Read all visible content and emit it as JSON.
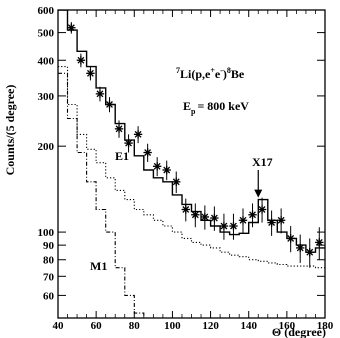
{
  "chart_data": {
    "type": "line",
    "ylabel": "Counts/(5 degree)",
    "xlabel": "Θ (degree)",
    "xlim": [
      40,
      180
    ],
    "ylim": [
      50,
      600
    ],
    "y_scale": "log",
    "x_ticks": [
      40,
      60,
      80,
      100,
      120,
      140,
      160,
      180
    ],
    "y_ticks": [
      60,
      70,
      80,
      90,
      100,
      200,
      300,
      400,
      500,
      600
    ],
    "annotations": {
      "reaction_parts": {
        "sup_mass_a": "7",
        "element_a": "Li(p,e",
        "sup_plus": "+",
        "element_e": "e",
        "sup_minus": "-",
        "close": ")",
        "sup_mass_b": "8",
        "element_b": "Be"
      },
      "energy": "E",
      "energy_sub": "p",
      "energy_value": "= 800 keV",
      "e1_label": "E1",
      "m1_label": "M1",
      "x17_label": "X17",
      "x17_arrow_x": 145,
      "x17_arrow_y": 130
    },
    "series": [
      {
        "style": "points",
        "x": [
          47,
          52,
          57,
          62,
          67,
          72,
          77,
          82,
          87,
          92,
          97,
          102,
          107,
          112,
          117,
          122,
          127,
          132,
          137,
          142,
          147,
          152,
          157,
          162,
          167,
          172,
          177
        ],
        "values": [
          520,
          400,
          360,
          305,
          280,
          230,
          205,
          220,
          190,
          170,
          165,
          150,
          120,
          115,
          113,
          112,
          105,
          105,
          110,
          115,
          120,
          108,
          110,
          95,
          88,
          85,
          92
        ],
        "y_err": [
          24,
          22,
          20,
          18,
          17,
          16,
          15,
          15,
          14,
          13,
          13,
          13,
          11,
          11,
          11,
          11,
          11,
          11,
          11,
          11,
          12,
          11,
          11,
          10,
          10,
          10,
          12
        ]
      },
      {
        "name": "E1",
        "style": "histogram-solid",
        "edges": [
          40,
          45,
          50,
          55,
          60,
          65,
          70,
          75,
          80,
          85,
          90,
          95,
          100,
          105,
          110,
          115,
          120,
          125,
          130,
          135,
          140,
          145,
          150,
          155,
          160,
          165,
          170,
          175,
          180
        ],
        "values": [
          600,
          510,
          430,
          380,
          320,
          280,
          240,
          210,
          185,
          165,
          155,
          150,
          135,
          125,
          118,
          110,
          105,
          100,
          98,
          99,
          108,
          130,
          110,
          100,
          95,
          90,
          85,
          88
        ]
      },
      {
        "style": "histogram-dotted",
        "edges": [
          40,
          45,
          50,
          55,
          60,
          65,
          70,
          75,
          80,
          85,
          90,
          95,
          100,
          105,
          110,
          115,
          120,
          125,
          130,
          135,
          140,
          145,
          150,
          155,
          160,
          165,
          170,
          175,
          180
        ],
        "values": [
          380,
          280,
          220,
          195,
          175,
          155,
          140,
          130,
          120,
          115,
          110,
          105,
          100,
          95,
          92,
          90,
          88,
          85,
          83,
          82,
          80,
          79,
          78,
          77,
          76,
          76,
          76,
          75
        ]
      },
      {
        "name": "M1",
        "style": "histogram-dashdot",
        "edges": [
          40,
          45,
          50,
          55,
          60,
          65,
          70,
          75,
          80,
          85,
          90,
          95
        ],
        "values": [
          360,
          250,
          190,
          150,
          120,
          100,
          75,
          60,
          52,
          48,
          42
        ]
      }
    ]
  }
}
